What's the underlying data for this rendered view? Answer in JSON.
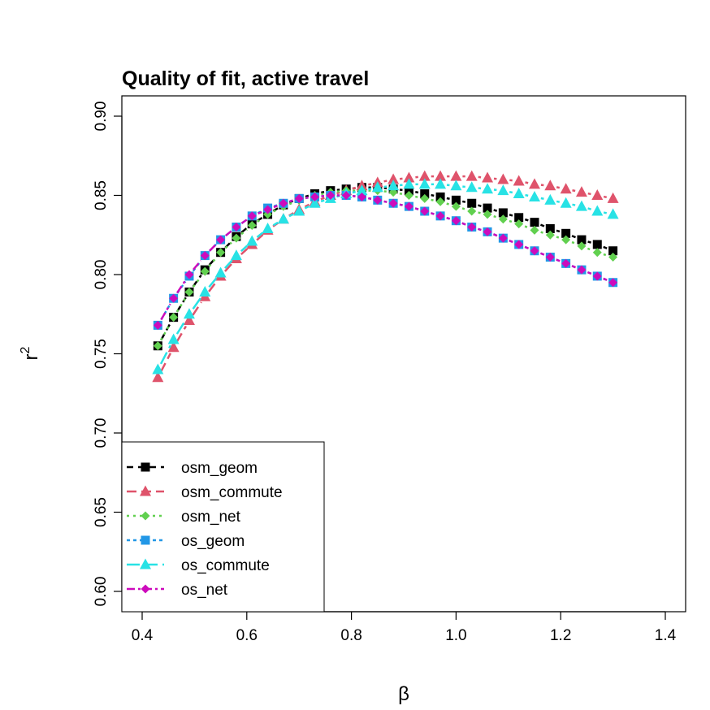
{
  "chart_data": {
    "type": "line",
    "title": "Quality of fit, active travel",
    "xlabel": "β",
    "ylabel": "r",
    "ylabel_superscript": "2",
    "xlim": [
      0.4,
      1.4
    ],
    "ylim": [
      0.6,
      0.9
    ],
    "xticks": [
      "0.4",
      "0.6",
      "0.8",
      "1.0",
      "1.2",
      "1.4"
    ],
    "yticks": [
      "0.60",
      "0.65",
      "0.70",
      "0.75",
      "0.80",
      "0.85",
      "0.90"
    ],
    "grid": false,
    "legend_position": "bottom-left",
    "x": [
      0.43,
      0.46,
      0.49,
      0.52,
      0.55,
      0.58,
      0.61,
      0.64,
      0.67,
      0.7,
      0.73,
      0.76,
      0.79,
      0.82,
      0.85,
      0.88,
      0.91,
      0.94,
      0.97,
      1.0,
      1.03,
      1.06,
      1.09,
      1.12,
      1.15,
      1.18,
      1.21,
      1.24,
      1.27,
      1.3
    ],
    "series": [
      {
        "name": "osm_geom",
        "color": "#000000",
        "marker": "square",
        "dash": "8,6",
        "values": [
          0.755,
          0.773,
          0.789,
          0.803,
          0.814,
          0.824,
          0.832,
          0.838,
          0.844,
          0.848,
          0.851,
          0.853,
          0.854,
          0.855,
          0.855,
          0.854,
          0.853,
          0.851,
          0.849,
          0.847,
          0.845,
          0.842,
          0.839,
          0.836,
          0.833,
          0.829,
          0.826,
          0.822,
          0.819,
          0.815
        ]
      },
      {
        "name": "osm_commute",
        "color": "#DF536B",
        "marker": "triangle",
        "dash": "12,6",
        "values": [
          0.735,
          0.754,
          0.771,
          0.786,
          0.799,
          0.81,
          0.819,
          0.828,
          0.835,
          0.841,
          0.846,
          0.85,
          0.853,
          0.856,
          0.858,
          0.86,
          0.861,
          0.862,
          0.862,
          0.862,
          0.862,
          0.861,
          0.86,
          0.859,
          0.857,
          0.856,
          0.854,
          0.852,
          0.85,
          0.848
        ]
      },
      {
        "name": "osm_net",
        "color": "#61D04F",
        "marker": "diamond",
        "dash": "3,5",
        "values": [
          0.755,
          0.773,
          0.789,
          0.802,
          0.814,
          0.823,
          0.831,
          0.838,
          0.843,
          0.847,
          0.85,
          0.852,
          0.853,
          0.853,
          0.853,
          0.852,
          0.85,
          0.848,
          0.846,
          0.843,
          0.84,
          0.838,
          0.835,
          0.832,
          0.828,
          0.825,
          0.822,
          0.818,
          0.814,
          0.811
        ]
      },
      {
        "name": "os_geom",
        "color": "#2297E6",
        "marker": "square",
        "dash": "4,4",
        "values": [
          0.768,
          0.785,
          0.799,
          0.812,
          0.822,
          0.83,
          0.837,
          0.842,
          0.845,
          0.848,
          0.849,
          0.85,
          0.85,
          0.849,
          0.847,
          0.845,
          0.843,
          0.84,
          0.837,
          0.834,
          0.83,
          0.827,
          0.823,
          0.819,
          0.815,
          0.811,
          0.807,
          0.803,
          0.799,
          0.795
        ]
      },
      {
        "name": "os_commute",
        "color": "#28E2E5",
        "marker": "triangle",
        "dash": "16,6",
        "values": [
          0.74,
          0.759,
          0.775,
          0.789,
          0.801,
          0.812,
          0.821,
          0.829,
          0.835,
          0.84,
          0.845,
          0.848,
          0.851,
          0.853,
          0.855,
          0.856,
          0.857,
          0.857,
          0.857,
          0.856,
          0.855,
          0.854,
          0.853,
          0.851,
          0.849,
          0.847,
          0.845,
          0.843,
          0.84,
          0.838
        ]
      },
      {
        "name": "os_net",
        "color": "#CD0BBC",
        "marker": "diamond",
        "dash": "10,4,3,4",
        "values": [
          0.768,
          0.785,
          0.8,
          0.812,
          0.822,
          0.83,
          0.837,
          0.841,
          0.845,
          0.848,
          0.849,
          0.85,
          0.85,
          0.849,
          0.847,
          0.845,
          0.843,
          0.84,
          0.837,
          0.834,
          0.83,
          0.827,
          0.823,
          0.819,
          0.815,
          0.811,
          0.807,
          0.803,
          0.799,
          0.795
        ]
      }
    ]
  }
}
